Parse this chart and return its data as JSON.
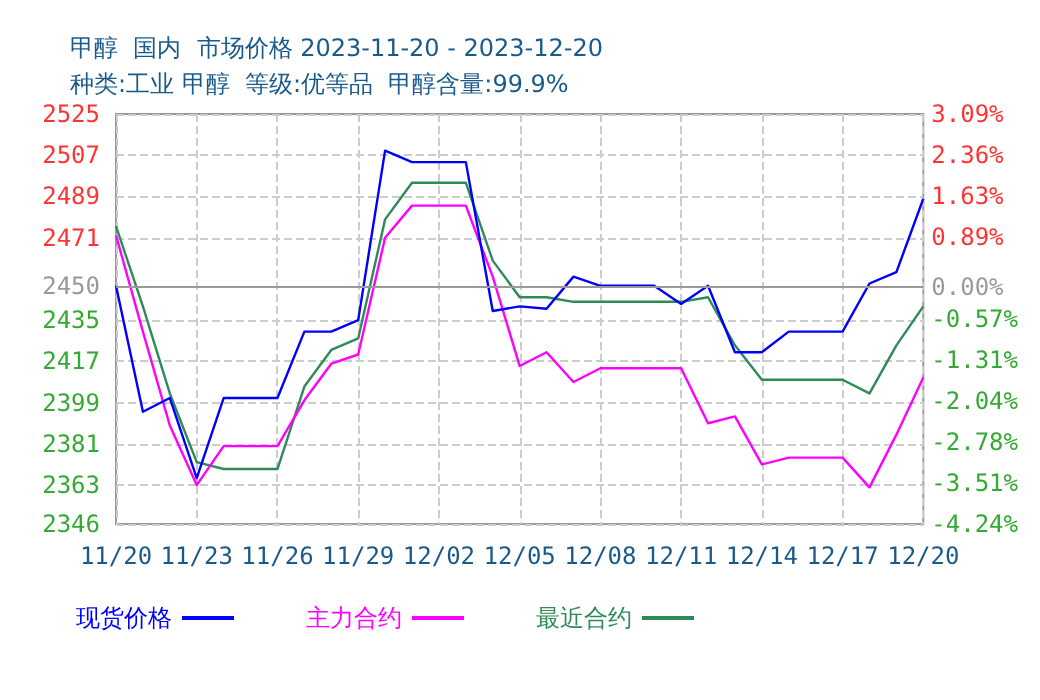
{
  "chart_data": {
    "type": "line",
    "title": "甲醇  国内  市场价格 2023-11-20 - 2023-12-20",
    "subtitle": "种类:工业 甲醇  等级:优等品  甲醇含量:99.9%",
    "categories": [
      "11/20",
      null,
      null,
      "11/23",
      null,
      null,
      "11/26",
      null,
      null,
      "11/29",
      null,
      null,
      "12/02",
      null,
      null,
      "12/05",
      null,
      null,
      "12/08",
      null,
      null,
      "12/11",
      null,
      null,
      "12/14",
      null,
      null,
      "12/17",
      null,
      null,
      "12/20"
    ],
    "series": [
      {
        "name": "现货价格",
        "color": "#0000ff",
        "values": [
          2450,
          2395,
          2401,
          2366,
          2401,
          2401,
          2401,
          2430,
          2430,
          2435,
          2509,
          2504,
          2504,
          2504,
          2439,
          2441,
          2440,
          2454,
          2450,
          2450,
          2450,
          2442,
          2450,
          2421,
          2421,
          2430,
          2430,
          2430,
          2451,
          2456,
          2488
        ]
      },
      {
        "name": "主力合约",
        "color": "#ff00ff",
        "values": [
          2472,
          2430,
          2389,
          2363,
          2380,
          2380,
          2380,
          2400,
          2416,
          2420,
          2471,
          2485,
          2485,
          2485,
          2454,
          2415,
          2421,
          2408,
          2414,
          2414,
          2414,
          2414,
          2390,
          2393,
          2372,
          2375,
          2375,
          2375,
          2362,
          2385,
          2410
        ]
      },
      {
        "name": "最近合约",
        "color": "#2e8b57",
        "values": [
          2476,
          2441,
          2403,
          2373,
          2370,
          2370,
          2370,
          2406,
          2422,
          2427,
          2479,
          2495,
          2495,
          2495,
          2461,
          2445,
          2445,
          2443,
          2443,
          2443,
          2443,
          2443,
          2445,
          2424,
          2409,
          2409,
          2409,
          2409,
          2403,
          2424,
          2441
        ]
      }
    ],
    "ylim": [
      2346,
      2525
    ],
    "yticks": [
      2346,
      2363,
      2381,
      2399,
      2417,
      2435,
      2450,
      2471,
      2489,
      2507,
      2525
    ],
    "y2lim": [
      -4.24,
      3.09
    ],
    "y2ticks": [
      {
        "value": -4.24,
        "label": "-4.24%"
      },
      {
        "value": -3.51,
        "label": "-3.51%"
      },
      {
        "value": -2.78,
        "label": "-2.78%"
      },
      {
        "value": -2.04,
        "label": "-2.04%"
      },
      {
        "value": -1.31,
        "label": "-1.31%"
      },
      {
        "value": -0.57,
        "label": "-0.57%"
      },
      {
        "value": 0,
        "label": "0.00%"
      },
      {
        "value": 0.89,
        "label": "0.89%"
      },
      {
        "value": 1.63,
        "label": "1.63%"
      },
      {
        "value": 2.36,
        "label": "2.36%"
      },
      {
        "value": 3.09,
        "label": "3.09%"
      }
    ],
    "ref_lines": [
      {
        "axis": "y",
        "value": 2450,
        "color": "#999999"
      }
    ],
    "grid": true,
    "legend": "bottom",
    "marker": "none",
    "line_style": "solid"
  }
}
